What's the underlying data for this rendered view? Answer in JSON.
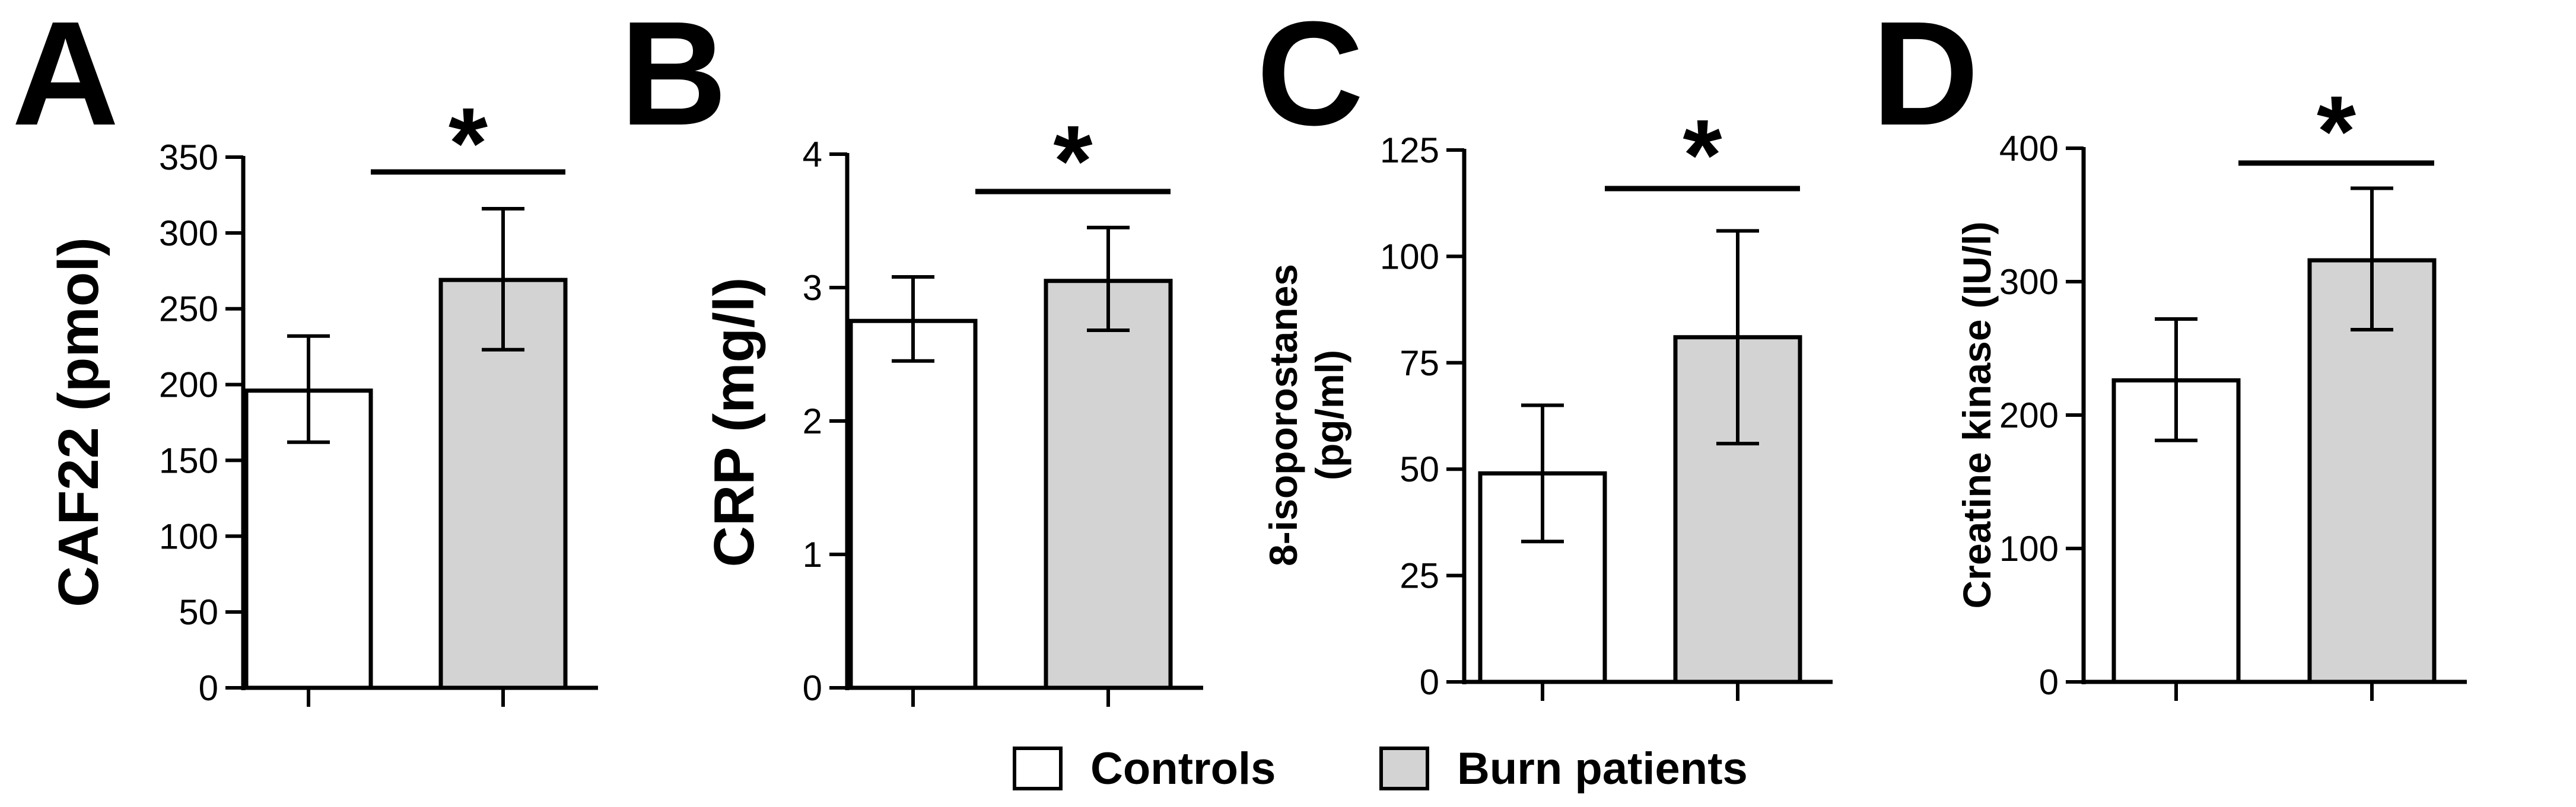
{
  "legend": [
    {
      "label": "Controls",
      "color": "#ffffff"
    },
    {
      "label": "Burn patients",
      "color": "#d3d3d3"
    }
  ],
  "chart_data": [
    {
      "type": "bar",
      "panel": "A",
      "ylabel_lines": [
        "CAF22 (pmol)"
      ],
      "ylim": [
        0,
        350
      ],
      "ticks": [
        0,
        50,
        100,
        150,
        200,
        250,
        300,
        350
      ],
      "tick_labels": [
        "0",
        "50",
        "100",
        "150",
        "200",
        "250",
        "300",
        "350"
      ],
      "categories": [
        "Controls",
        "Burn patients"
      ],
      "values": [
        196,
        269
      ],
      "err_low": [
        162,
        223
      ],
      "err_high": [
        232,
        316
      ],
      "significance": "*"
    },
    {
      "type": "bar",
      "panel": "B",
      "ylabel_lines": [
        "CRP (mg/l)"
      ],
      "ylim": [
        0,
        4
      ],
      "ticks": [
        0,
        1,
        2,
        3,
        4
      ],
      "tick_labels": [
        "0",
        "1",
        "2",
        "3",
        "4"
      ],
      "categories": [
        "Controls",
        "Burn patients"
      ],
      "values": [
        2.75,
        3.05
      ],
      "err_low": [
        2.45,
        2.68
      ],
      "err_high": [
        3.08,
        3.45
      ],
      "significance": "*"
    },
    {
      "type": "bar",
      "panel": "C",
      "ylabel_lines": [
        "8-isoporostanes",
        "(pg/ml)"
      ],
      "ylim": [
        0,
        125
      ],
      "ticks": [
        0,
        25,
        50,
        75,
        100,
        125
      ],
      "tick_labels": [
        "0",
        "25",
        "50",
        "75",
        "100",
        "125"
      ],
      "categories": [
        "Controls",
        "Burn patients"
      ],
      "values": [
        49,
        81
      ],
      "err_low": [
        33,
        56
      ],
      "err_high": [
        65,
        106
      ],
      "significance": "*"
    },
    {
      "type": "bar",
      "panel": "D",
      "ylabel_lines": [
        "Creatine kinase (IU/l)"
      ],
      "ylim": [
        0,
        400
      ],
      "ticks": [
        0,
        100,
        200,
        300,
        400
      ],
      "tick_labels": [
        "0",
        "100",
        "200",
        "300",
        "400"
      ],
      "categories": [
        "Controls",
        "Burn patients"
      ],
      "values": [
        226,
        316
      ],
      "err_low": [
        181,
        264
      ],
      "err_high": [
        272,
        370
      ],
      "significance": "*"
    }
  ]
}
